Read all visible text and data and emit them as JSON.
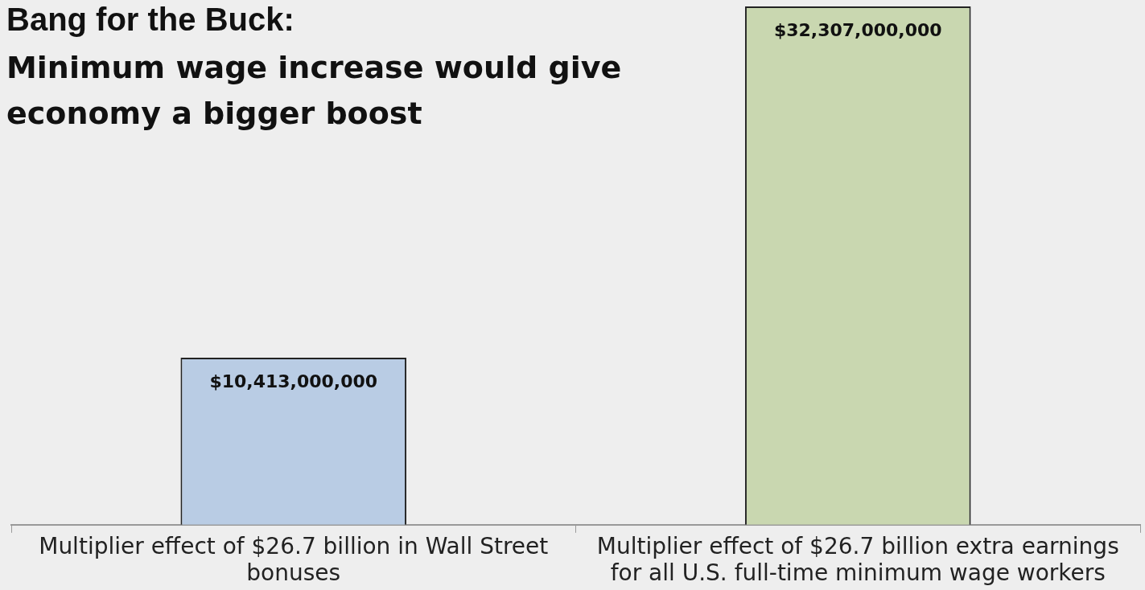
{
  "chart_data": {
    "type": "bar",
    "title": "Bang for the Buck:",
    "subtitle": "Minimum wage increase would give economy a bigger boost",
    "categories": [
      "Multiplier effect of $26.7 billion in Wall Street bonuses",
      "Multiplier effect of $26.7 billion extra earnings for all U.S. full-time minimum wage workers"
    ],
    "values": [
      10413000000,
      32307000000
    ],
    "colors": [
      "#b9cce4",
      "#c9d7b0"
    ],
    "value_labels": [
      "$10,413,000,000",
      "$32,307,000,000"
    ]
  }
}
